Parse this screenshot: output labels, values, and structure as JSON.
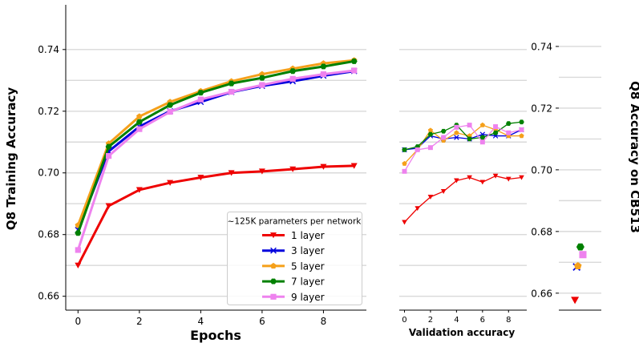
{
  "chart_data": {
    "type": "line",
    "colors": {
      "1 layer": "#ee0000",
      "3 layer": "#0000dd",
      "5 layer": "#f5a01a",
      "7 layer": "#008000",
      "9 layer": "#ee82ee"
    },
    "markers": {
      "1 layer": "triangle-down",
      "3 layer": "x",
      "5 layer": "pentagon",
      "7 layer": "hexagon",
      "9 layer": "square"
    },
    "legend_title": "~125K parameters per network",
    "legend_position": "lower-right",
    "training": {
      "xlabel": "Epochs",
      "ylabel": "Q8 Training Accuracy",
      "xlim": [
        -0.4,
        9.4
      ],
      "ylim": [
        0.6555,
        0.7545
      ],
      "xticks": [
        "0",
        "2",
        "4",
        "6",
        "8"
      ],
      "xtick_values": [
        0,
        2,
        4,
        6,
        8
      ],
      "yticks": [
        "0.66",
        "0.68",
        "0.70",
        "0.72",
        "0.74"
      ],
      "ytick_values": [
        0.66,
        0.68,
        0.7,
        0.72,
        0.74
      ],
      "grid_lines": [
        0.66,
        0.67,
        0.68,
        0.69,
        0.7,
        0.71,
        0.72,
        0.73,
        0.74
      ],
      "x": [
        0,
        1,
        2,
        3,
        4,
        5,
        6,
        7,
        8,
        9
      ],
      "series": [
        {
          "name": "1 layer",
          "values": [
            0.67,
            0.6893,
            0.6945,
            0.6968,
            0.6985,
            0.7,
            0.7005,
            0.7012,
            0.702,
            0.7023
          ]
        },
        {
          "name": "3 layer",
          "values": [
            0.6815,
            0.707,
            0.715,
            0.72,
            0.723,
            0.7262,
            0.7282,
            0.7297,
            0.7315,
            0.733
          ]
        },
        {
          "name": "5 layer",
          "values": [
            0.683,
            0.7095,
            0.7183,
            0.723,
            0.7265,
            0.7297,
            0.732,
            0.7338,
            0.7355,
            0.7365
          ]
        },
        {
          "name": "7 layer",
          "values": [
            0.6805,
            0.7085,
            0.7165,
            0.722,
            0.726,
            0.729,
            0.7308,
            0.733,
            0.7345,
            0.7362
          ]
        },
        {
          "name": "9 layer",
          "values": [
            0.675,
            0.7055,
            0.7142,
            0.7198,
            0.7238,
            0.7263,
            0.7285,
            0.7305,
            0.732,
            0.7332
          ]
        }
      ]
    },
    "validation": {
      "xlabel": "Validation accuracy",
      "xlim": [
        -0.4,
        9.4
      ],
      "xticks": [
        "0",
        "2",
        "4",
        "6",
        "8"
      ],
      "xtick_values": [
        0,
        2,
        4,
        6,
        8
      ],
      "grid_lines": [
        0.66,
        0.67,
        0.68,
        0.69,
        0.7,
        0.71,
        0.72,
        0.73,
        0.74
      ],
      "x": [
        0,
        1,
        2,
        3,
        4,
        5,
        6,
        7,
        8,
        9
      ],
      "series": [
        {
          "name": "1 layer",
          "values": [
            0.684,
            0.6885,
            0.6922,
            0.694,
            0.6975,
            0.6985,
            0.697,
            0.699,
            0.698,
            0.6985
          ]
        },
        {
          "name": "3 layer",
          "values": [
            0.7075,
            0.708,
            0.712,
            0.711,
            0.7115,
            0.711,
            0.7125,
            0.712,
            0.712,
            0.714
          ]
        },
        {
          "name": "5 layer",
          "values": [
            0.703,
            0.7075,
            0.7138,
            0.7105,
            0.713,
            0.712,
            0.7155,
            0.714,
            0.712,
            0.712
          ]
        },
        {
          "name": "7 layer",
          "values": [
            0.7075,
            0.7085,
            0.7125,
            0.7135,
            0.7155,
            0.711,
            0.7115,
            0.713,
            0.716,
            0.7165
          ]
        },
        {
          "name": "9 layer",
          "values": [
            0.7005,
            0.7075,
            0.7082,
            0.7115,
            0.7148,
            0.7155,
            0.71,
            0.715,
            0.713,
            0.714
          ]
        }
      ]
    },
    "test_cb513": {
      "ylabel": "Q8 Accuracy on CB513",
      "ylim": [
        0.6545,
        0.7535
      ],
      "yticks": [
        "0.66",
        "0.68",
        "0.70",
        "0.72",
        "0.74"
      ],
      "ytick_values": [
        0.66,
        0.68,
        0.7,
        0.72,
        0.74
      ],
      "grid_lines": [
        0.66,
        0.67,
        0.68,
        0.69,
        0.7,
        0.71,
        0.72,
        0.73,
        0.74
      ],
      "points": [
        {
          "name": "1 layer",
          "x": 0.62,
          "value": 0.6577
        },
        {
          "name": "3 layer",
          "x": 0.7,
          "value": 0.6685
        },
        {
          "name": "5 layer",
          "x": 0.76,
          "value": 0.6688
        },
        {
          "name": "7 layer",
          "x": 0.88,
          "value": 0.675
        },
        {
          "name": "9 layer",
          "x": 1.0,
          "value": 0.6725
        }
      ]
    }
  }
}
